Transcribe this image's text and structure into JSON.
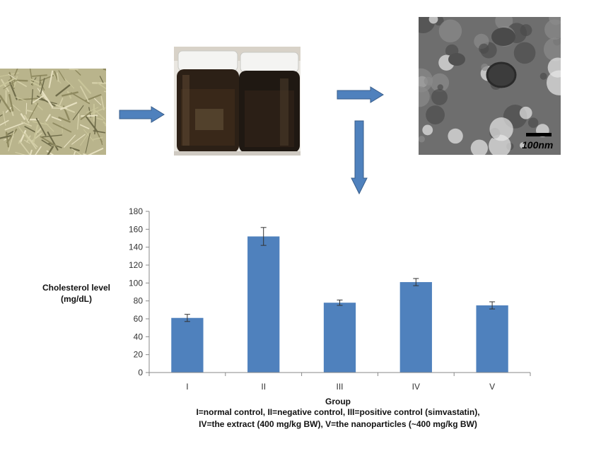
{
  "figure": {
    "photo_scale_label": "100nm",
    "colors": {
      "bar": "#4f81bd",
      "arrow": "#4f81bd",
      "arrow_edge": "#385d8a"
    }
  },
  "chart_data": {
    "type": "bar",
    "categories": [
      "I",
      "II",
      "III",
      "IV",
      "V"
    ],
    "values": [
      61,
      152,
      78,
      101,
      75
    ],
    "errors": [
      4,
      10,
      3,
      4,
      4
    ],
    "ylabel_lines": [
      "Cholesterol level",
      "(mg/dL)"
    ],
    "xlabel": "Group",
    "caption_lines": [
      "I=normal control, II=negative control, III=positive control (simvastatin),",
      "IV=the extract (400 mg/kg BW), V=the nanoparticles (~400 mg/kg BW)"
    ],
    "ylim": [
      0,
      180
    ],
    "yticks": [
      0,
      20,
      40,
      60,
      80,
      100,
      120,
      140,
      160,
      180
    ],
    "grid": false,
    "legend": "none"
  }
}
